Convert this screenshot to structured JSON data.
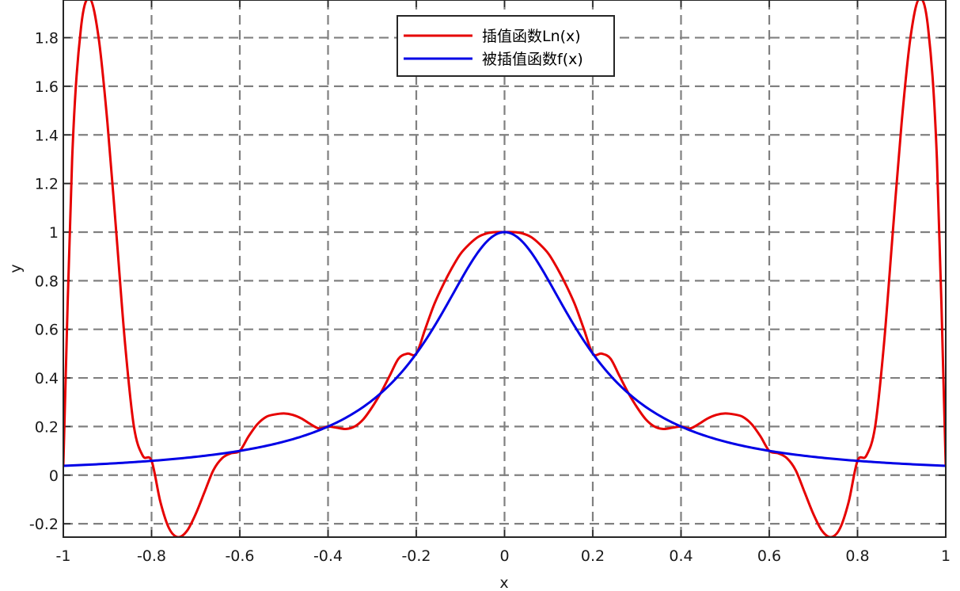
{
  "chart_data": {
    "type": "line",
    "xlabel": "x",
    "ylabel": "y",
    "xlim": [
      -1,
      1
    ],
    "ylim": [
      -0.255,
      1.955
    ],
    "xticks": [
      -1,
      -0.8,
      -0.6,
      -0.4,
      -0.2,
      0,
      0.2,
      0.4,
      0.6,
      0.8,
      1
    ],
    "xtick_labels": [
      "-1",
      "-0.8",
      "-0.6",
      "-0.4",
      "-0.2",
      "0",
      "0.2",
      "0.4",
      "0.6",
      "0.8",
      "1"
    ],
    "yticks": [
      -0.2,
      0,
      0.2,
      0.4,
      0.6,
      0.8,
      1,
      1.2,
      1.4,
      1.6,
      1.8
    ],
    "ytick_labels": [
      "-0.2",
      "0",
      "0.2",
      "0.4",
      "0.6",
      "0.8",
      "1",
      "1.2",
      "1.4",
      "1.6",
      "1.8"
    ],
    "grid": true,
    "legend_position": "top-center",
    "series": [
      {
        "name": "插值函数Ln(x)",
        "color": "#e60000",
        "x": [
          -1,
          -0.98,
          -0.96,
          -0.94,
          -0.92,
          -0.9,
          -0.88,
          -0.86,
          -0.84,
          -0.82,
          -0.8,
          -0.78,
          -0.76,
          -0.74,
          -0.72,
          -0.7,
          -0.68,
          -0.66,
          -0.64,
          -0.62,
          -0.6,
          -0.58,
          -0.56,
          -0.54,
          -0.52,
          -0.5,
          -0.48,
          -0.46,
          -0.44,
          -0.42,
          -0.4,
          -0.38,
          -0.36,
          -0.34,
          -0.32,
          -0.3,
          -0.28,
          -0.26,
          -0.24,
          -0.22,
          -0.2,
          -0.18,
          -0.16,
          -0.14,
          -0.12,
          -0.1,
          -0.08,
          -0.06,
          -0.04,
          -0.02,
          0,
          0.02,
          0.04,
          0.06,
          0.08,
          0.1,
          0.12,
          0.14,
          0.16,
          0.18,
          0.2,
          0.22,
          0.24,
          0.26,
          0.28,
          0.3,
          0.32,
          0.34,
          0.36,
          0.38,
          0.4,
          0.42,
          0.44,
          0.46,
          0.48,
          0.5,
          0.52,
          0.54,
          0.56,
          0.58,
          0.6,
          0.62,
          0.64,
          0.66,
          0.68,
          0.7,
          0.72,
          0.74,
          0.76,
          0.78,
          0.8,
          0.82,
          0.84,
          0.86,
          0.88,
          0.9,
          0.92,
          0.94,
          0.96,
          0.98,
          1
        ],
        "y": [
          0.038,
          1.3,
          1.84,
          1.96,
          1.8,
          1.45,
          1.0,
          0.54,
          0.2,
          0.08,
          0.059,
          -0.11,
          -0.22,
          -0.255,
          -0.23,
          -0.16,
          -0.07,
          0.02,
          0.07,
          0.09,
          0.1,
          0.16,
          0.21,
          0.24,
          0.25,
          0.254,
          0.248,
          0.233,
          0.21,
          0.192,
          0.2,
          0.195,
          0.19,
          0.2,
          0.23,
          0.28,
          0.34,
          0.41,
          0.48,
          0.5,
          0.5,
          0.6,
          0.7,
          0.78,
          0.85,
          0.91,
          0.95,
          0.98,
          0.995,
          1.0,
          1.0,
          1.0,
          0.995,
          0.98,
          0.95,
          0.91,
          0.85,
          0.78,
          0.7,
          0.6,
          0.5,
          0.5,
          0.48,
          0.41,
          0.34,
          0.28,
          0.23,
          0.2,
          0.19,
          0.195,
          0.2,
          0.192,
          0.21,
          0.233,
          0.248,
          0.254,
          0.25,
          0.24,
          0.21,
          0.16,
          0.1,
          0.09,
          0.07,
          0.02,
          -0.07,
          -0.16,
          -0.23,
          -0.255,
          -0.22,
          -0.11,
          0.059,
          0.08,
          0.2,
          0.54,
          1.0,
          1.45,
          1.8,
          1.96,
          1.84,
          1.3,
          0.038
        ]
      },
      {
        "name": "被插值函数f(x)",
        "color": "#0000e6",
        "function": "1/(1+25x^2)",
        "x_range": [
          -1,
          1
        ]
      }
    ]
  }
}
